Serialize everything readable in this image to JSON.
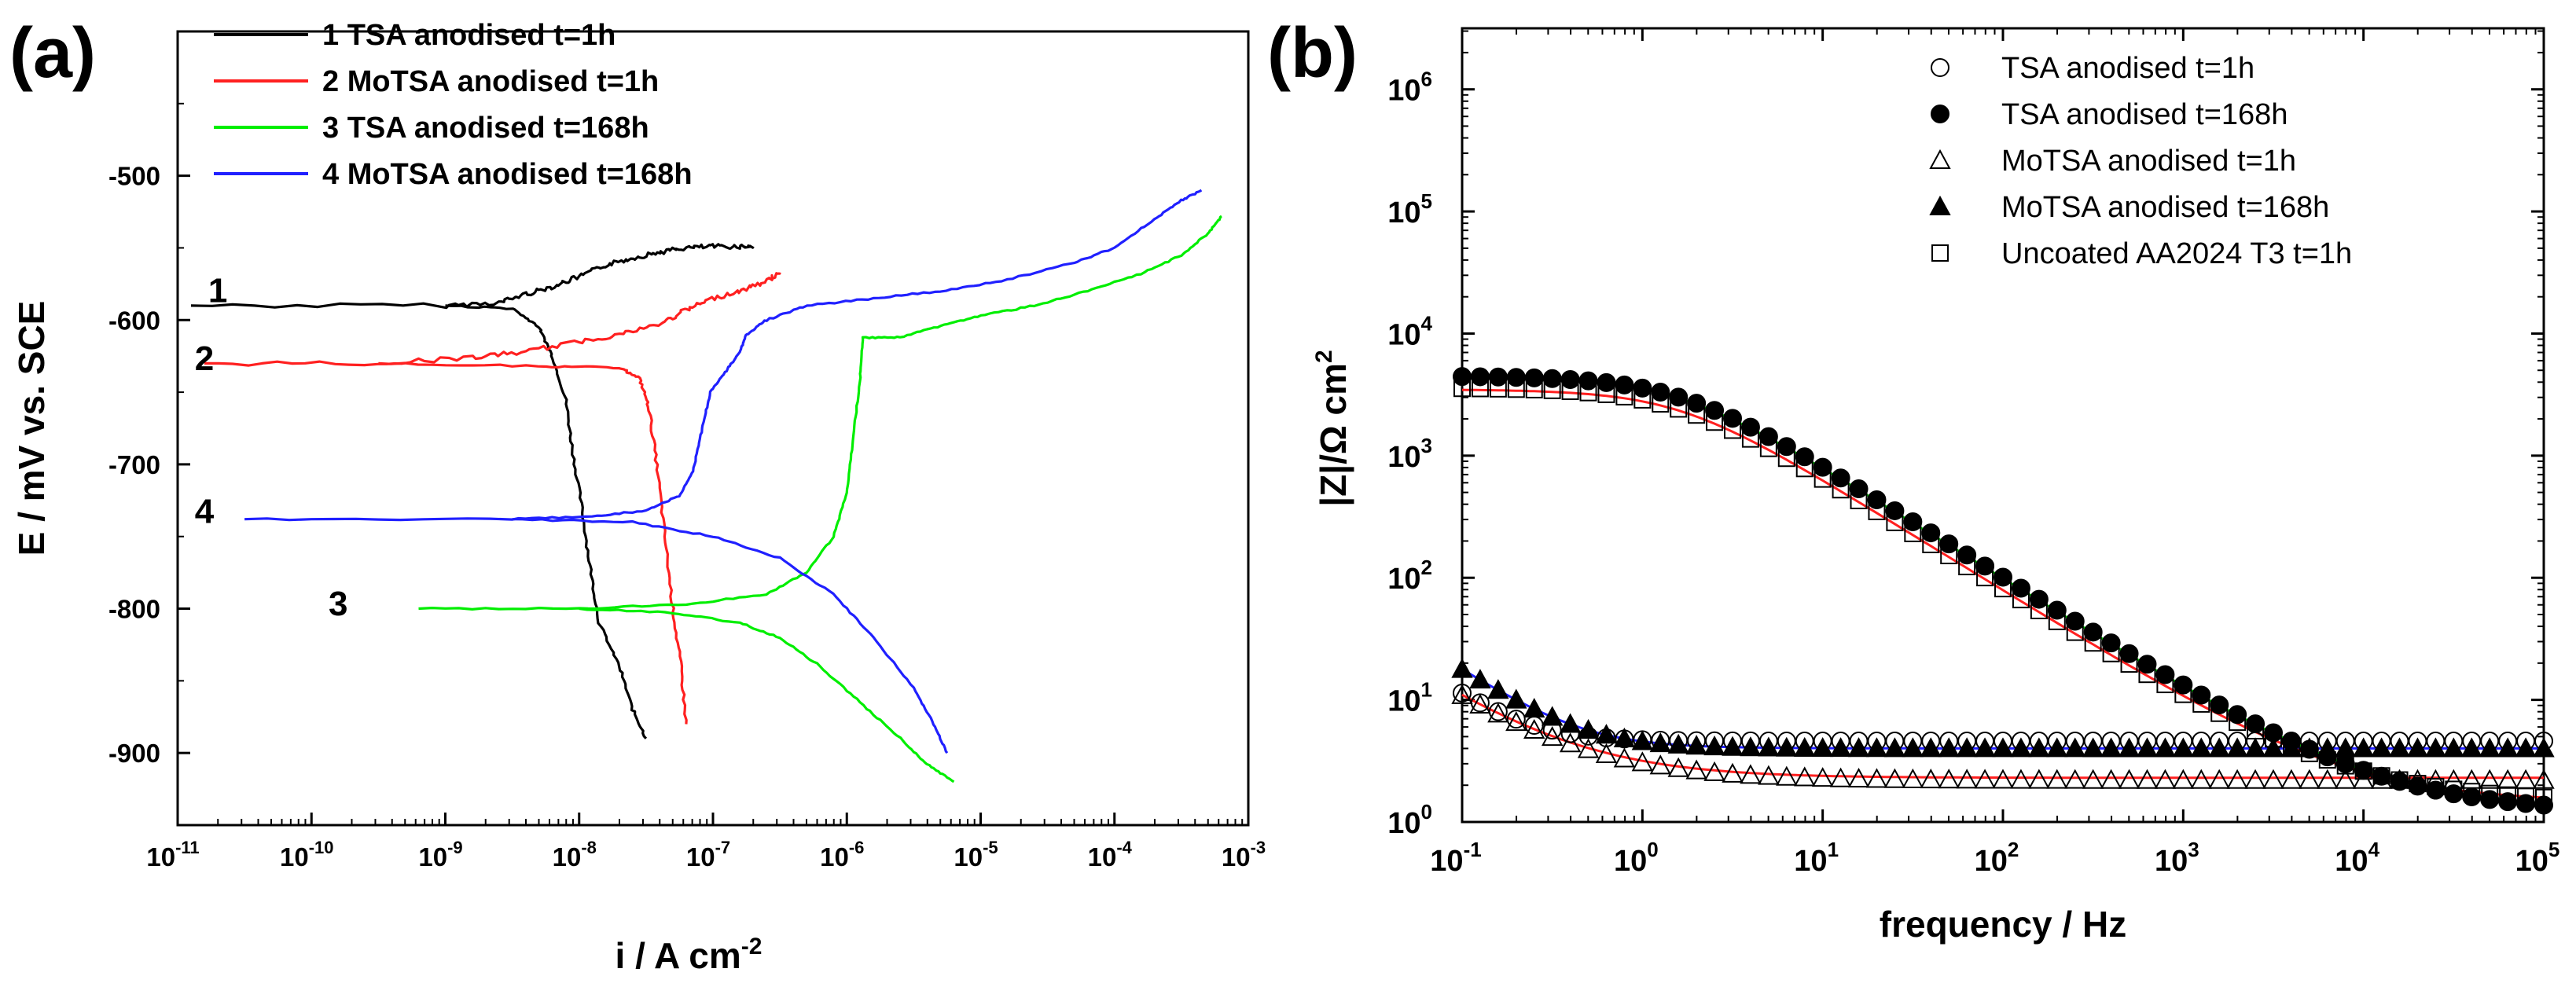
{
  "chart_data": [
    {
      "panel_label": "(a)",
      "type": "line",
      "xscale": "log",
      "xlim_exp": [
        -11,
        -3
      ],
      "ylim": [
        -950,
        -400
      ],
      "xlabel": "i / A cm",
      "xlabel_sup": "-2",
      "ylabel": "E / mV vs. SCE",
      "x_ticks": [
        -11,
        -10,
        -9,
        -8,
        -7,
        -6,
        -5,
        -4,
        -3
      ],
      "y_ticks": [
        -900,
        -800,
        -700,
        -600,
        -500
      ],
      "legend_position": "top-left",
      "series": [
        {
          "label": "1 TSA anodised t=1h",
          "curve_number": "1",
          "color": "#000000",
          "number_at": [
            -10.7,
            -580
          ],
          "points": [
            [
              -10.9,
              -590
            ],
            [
              -9.0,
              -590
            ],
            [
              -8.6,
              -588
            ],
            [
              -8.4,
              -582
            ],
            [
              -8.2,
              -577
            ],
            [
              -8.0,
              -570
            ],
            [
              -7.8,
              -562
            ],
            [
              -7.6,
              -557
            ],
            [
              -7.4,
              -553
            ],
            [
              -7.2,
              -550
            ],
            [
              -7.0,
              -549
            ],
            [
              -6.8,
              -549
            ],
            [
              -6.7,
              -549
            ]
          ],
          "cathodic": [
            [
              -9.0,
              -590
            ],
            [
              -8.5,
              -592
            ],
            [
              -8.3,
              -605
            ],
            [
              -8.2,
              -625
            ],
            [
              -8.1,
              -655
            ],
            [
              -8.05,
              -690
            ],
            [
              -7.98,
              -730
            ],
            [
              -7.92,
              -770
            ],
            [
              -7.85,
              -810
            ],
            [
              -7.7,
              -840
            ],
            [
              -7.6,
              -870
            ],
            [
              -7.5,
              -890
            ]
          ]
        },
        {
          "label": "2 MoTSA anodised t=1h",
          "curve_number": "2",
          "color": "#ff2020",
          "number_at": [
            -10.8,
            -627
          ],
          "points": [
            [
              -10.8,
              -630
            ],
            [
              -9.5,
              -630
            ],
            [
              -8.8,
              -626
            ],
            [
              -8.4,
              -622
            ],
            [
              -8.0,
              -615
            ],
            [
              -7.7,
              -610
            ],
            [
              -7.4,
              -603
            ],
            [
              -7.2,
              -593
            ],
            [
              -7.0,
              -585
            ],
            [
              -6.8,
              -580
            ],
            [
              -6.6,
              -573
            ],
            [
              -6.5,
              -567
            ]
          ],
          "cathodic": [
            [
              -9.5,
              -630
            ],
            [
              -8.3,
              -632
            ],
            [
              -7.7,
              -633
            ],
            [
              -7.55,
              -640
            ],
            [
              -7.48,
              -660
            ],
            [
              -7.42,
              -700
            ],
            [
              -7.36,
              -750
            ],
            [
              -7.3,
              -800
            ],
            [
              -7.24,
              -840
            ],
            [
              -7.2,
              -880
            ]
          ]
        },
        {
          "label": "3 TSA anodised t=168h",
          "curve_number": "3",
          "color": "#00ee00",
          "number_at": [
            -9.8,
            -797
          ],
          "points": [
            [
              -9.2,
              -800
            ],
            [
              -8.0,
              -800
            ],
            [
              -7.2,
              -797
            ],
            [
              -6.6,
              -790
            ],
            [
              -6.3,
              -775
            ],
            [
              -6.1,
              -750
            ],
            [
              -6.0,
              -720
            ],
            [
              -5.95,
              -680
            ],
            [
              -5.9,
              -640
            ],
            [
              -5.88,
              -612
            ],
            [
              -5.6,
              -612
            ],
            [
              -5.3,
              -604
            ],
            [
              -5.0,
              -597
            ],
            [
              -4.6,
              -590
            ],
            [
              -4.2,
              -580
            ],
            [
              -3.8,
              -568
            ],
            [
              -3.5,
              -555
            ],
            [
              -3.3,
              -540
            ],
            [
              -3.2,
              -528
            ]
          ],
          "cathodic": [
            [
              -8.0,
              -800
            ],
            [
              -7.3,
              -803
            ],
            [
              -6.8,
              -810
            ],
            [
              -6.5,
              -820
            ],
            [
              -6.2,
              -840
            ],
            [
              -5.9,
              -865
            ],
            [
              -5.6,
              -890
            ],
            [
              -5.4,
              -908
            ],
            [
              -5.2,
              -920
            ]
          ]
        },
        {
          "label": "4 MoTSA anodised t=168h",
          "curve_number": "4",
          "color": "#2020ff",
          "number_at": [
            -10.8,
            -733
          ],
          "points": [
            [
              -10.5,
              -738
            ],
            [
              -8.5,
              -738
            ],
            [
              -7.9,
              -736
            ],
            [
              -7.5,
              -732
            ],
            [
              -7.25,
              -722
            ],
            [
              -7.15,
              -705
            ],
            [
              -7.08,
              -675
            ],
            [
              -7.02,
              -650
            ],
            [
              -6.9,
              -635
            ],
            [
              -6.8,
              -622
            ],
            [
              -6.75,
              -610
            ],
            [
              -6.6,
              -600
            ],
            [
              -6.3,
              -590
            ],
            [
              -5.8,
              -585
            ],
            [
              -5.3,
              -580
            ],
            [
              -4.8,
              -572
            ],
            [
              -4.3,
              -560
            ],
            [
              -4.0,
              -550
            ],
            [
              -3.7,
              -530
            ],
            [
              -3.5,
              -517
            ],
            [
              -3.35,
              -510
            ]
          ],
          "cathodic": [
            [
              -8.5,
              -738
            ],
            [
              -7.6,
              -740
            ],
            [
              -7.0,
              -750
            ],
            [
              -6.5,
              -765
            ],
            [
              -6.1,
              -790
            ],
            [
              -5.8,
              -820
            ],
            [
              -5.5,
              -855
            ],
            [
              -5.35,
              -880
            ],
            [
              -5.25,
              -900
            ]
          ]
        }
      ]
    },
    {
      "panel_label": "(b)",
      "type": "scatter",
      "xscale": "log",
      "yscale": "log",
      "xlim_exp": [
        -1,
        5
      ],
      "ylim_exp": [
        0,
        6.5
      ],
      "xlabel": "frequency / Hz",
      "ylabel": "|Z|/Ω cm",
      "ylabel_sup": "2",
      "x_ticks": [
        -1,
        0,
        1,
        2,
        3,
        4,
        5
      ],
      "y_ticks": [
        0,
        1,
        2,
        3,
        4,
        5,
        6
      ],
      "legend_position": "top-right",
      "series": [
        {
          "label": "TSA anodised t=1h",
          "marker": "open-circle",
          "R0": 0,
          "R": 1300000,
          "fc": 8e-07,
          "n": 1.0,
          "Rs": 4.6
        },
        {
          "label": "TSA anodised t=168h",
          "marker": "filled-circle",
          "R0": 1.2,
          "R": 4500,
          "fc": 1.6,
          "n": 0.92,
          "Rs": 0
        },
        {
          "label": "MoTSA anodised t=1h",
          "marker": "open-triangle",
          "R0": 2.2,
          "R": 1100000,
          "fc": 7.9e-07,
          "n": 1.0,
          "Rs": 0
        },
        {
          "label": "MoTSA anodised t=168h",
          "marker": "filled-triangle",
          "R0": 0,
          "R": 240000,
          "fc": 4.3e-06,
          "n": 0.95,
          "Rs": 4.0
        },
        {
          "label": "Uncoated AA2024 T3 t=1h",
          "marker": "open-square",
          "R0": 1.45,
          "R": 3600,
          "fc": 1.6,
          "n": 0.92,
          "Rs": 0
        }
      ],
      "fit_lines": [
        {
          "name": "fit-high",
          "color": "#ff2020",
          "R0": 2.3,
          "R": 1100000,
          "fc": 7.9e-07,
          "n": 1.0
        },
        {
          "name": "fit-mid",
          "color": "#2020ff",
          "R0": 0,
          "R": 240000,
          "fc": 4.3e-06,
          "n": 0.95,
          "Rs": 4.0
        },
        {
          "name": "fit-low-green",
          "color": "#00cc00",
          "R0": 1.25,
          "R": 4400,
          "fc": 1.6,
          "n": 0.92
        },
        {
          "name": "fit-low-red",
          "color": "#ff2020",
          "R0": 1.45,
          "R": 3500,
          "fc": 1.6,
          "n": 0.92
        }
      ]
    }
  ]
}
